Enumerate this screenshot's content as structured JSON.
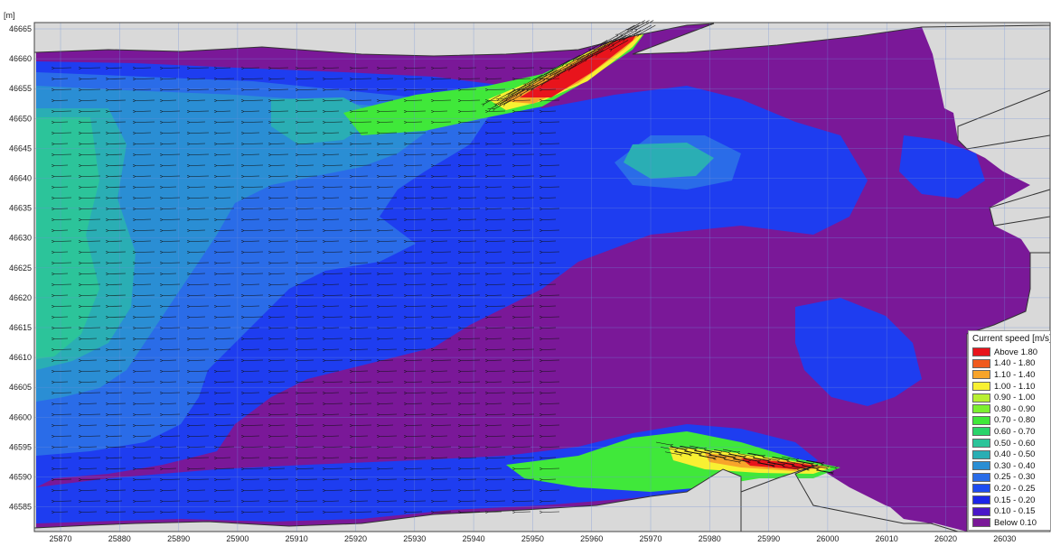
{
  "unit_label": "[m]",
  "y_ticks": [
    "46665",
    "46660",
    "46655",
    "46650",
    "46645",
    "46640",
    "46635",
    "46630",
    "46625",
    "46620",
    "46615",
    "46610",
    "46605",
    "46600",
    "46595",
    "46590",
    "46585"
  ],
  "x_ticks": [
    "25870",
    "25880",
    "25890",
    "25900",
    "25910",
    "25920",
    "25930",
    "25940",
    "25950",
    "25960",
    "25970",
    "25980",
    "25990",
    "26000",
    "26010",
    "26020",
    "26030"
  ],
  "legend": {
    "title": "Current speed [m/s]",
    "items": [
      {
        "label": "Above 1.80",
        "color": "#e8141c"
      },
      {
        "label": "1.40 - 1.80",
        "color": "#f05a1e"
      },
      {
        "label": "1.10 - 1.40",
        "color": "#f7a42a"
      },
      {
        "label": "1.00 - 1.10",
        "color": "#f8f032"
      },
      {
        "label": "0.90 - 1.00",
        "color": "#b8f032"
      },
      {
        "label": "0.80 - 0.90",
        "color": "#7cf030"
      },
      {
        "label": "0.70 - 0.80",
        "color": "#40e83a"
      },
      {
        "label": "0.60 - 0.70",
        "color": "#2ad46a"
      },
      {
        "label": "0.50 - 0.60",
        "color": "#2cc49a"
      },
      {
        "label": "0.40 - 0.50",
        "color": "#2aaeb4"
      },
      {
        "label": "0.30 - 0.40",
        "color": "#2a8ed4"
      },
      {
        "label": "0.25 - 0.30",
        "color": "#2a6ce8"
      },
      {
        "label": "0.20 - 0.25",
        "color": "#1e4cf0"
      },
      {
        "label": "0.15 - 0.20",
        "color": "#1c26e8"
      },
      {
        "label": "0.10 - 0.15",
        "color": "#4a18c8"
      },
      {
        "label": "Below 0.10",
        "color": "#7a1898"
      }
    ]
  },
  "colors": {
    "land": "#d9d9d9",
    "grid": "#6f8fd8",
    "arrow": "#111111",
    "coast": "#333333"
  }
}
